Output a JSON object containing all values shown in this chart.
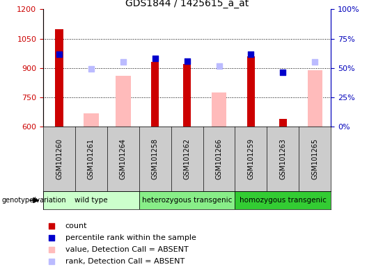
{
  "title": "GDS1844 / 1425615_a_at",
  "samples": [
    "GSM101260",
    "GSM101261",
    "GSM101264",
    "GSM101258",
    "GSM101262",
    "GSM101266",
    "GSM101259",
    "GSM101263",
    "GSM101265"
  ],
  "ylim_left": [
    600,
    1200
  ],
  "ylim_right": [
    0,
    100
  ],
  "yticks_left": [
    600,
    750,
    900,
    1050,
    1200
  ],
  "yticks_right": [
    0,
    25,
    50,
    75,
    100
  ],
  "count": [
    1100,
    null,
    null,
    930,
    920,
    null,
    960,
    640,
    null
  ],
  "percentile_rank": [
    970,
    null,
    null,
    950,
    935,
    null,
    970,
    880,
    null
  ],
  "value_absent": [
    null,
    670,
    860,
    null,
    null,
    775,
    null,
    null,
    890
  ],
  "rank_absent": [
    null,
    895,
    930,
    null,
    null,
    910,
    null,
    null,
    930
  ],
  "count_color": "#cc0000",
  "percentile_color": "#0000cc",
  "value_absent_color": "#ffbbbb",
  "rank_absent_color": "#bbbbff",
  "dot_size": 28,
  "axis_color_left": "#cc0000",
  "axis_color_right": "#0000bb",
  "group_data": [
    {
      "label": "wild type",
      "start": 0,
      "end": 2,
      "color": "#ccffcc"
    },
    {
      "label": "heterozygous transgenic",
      "start": 3,
      "end": 5,
      "color": "#88ee88"
    },
    {
      "label": "homozygous transgenic",
      "start": 6,
      "end": 8,
      "color": "#33cc33"
    }
  ],
  "title_fontsize": 10,
  "tick_label_fontsize": 7,
  "legend_fontsize": 8,
  "group_label_fontsize": 7.5
}
